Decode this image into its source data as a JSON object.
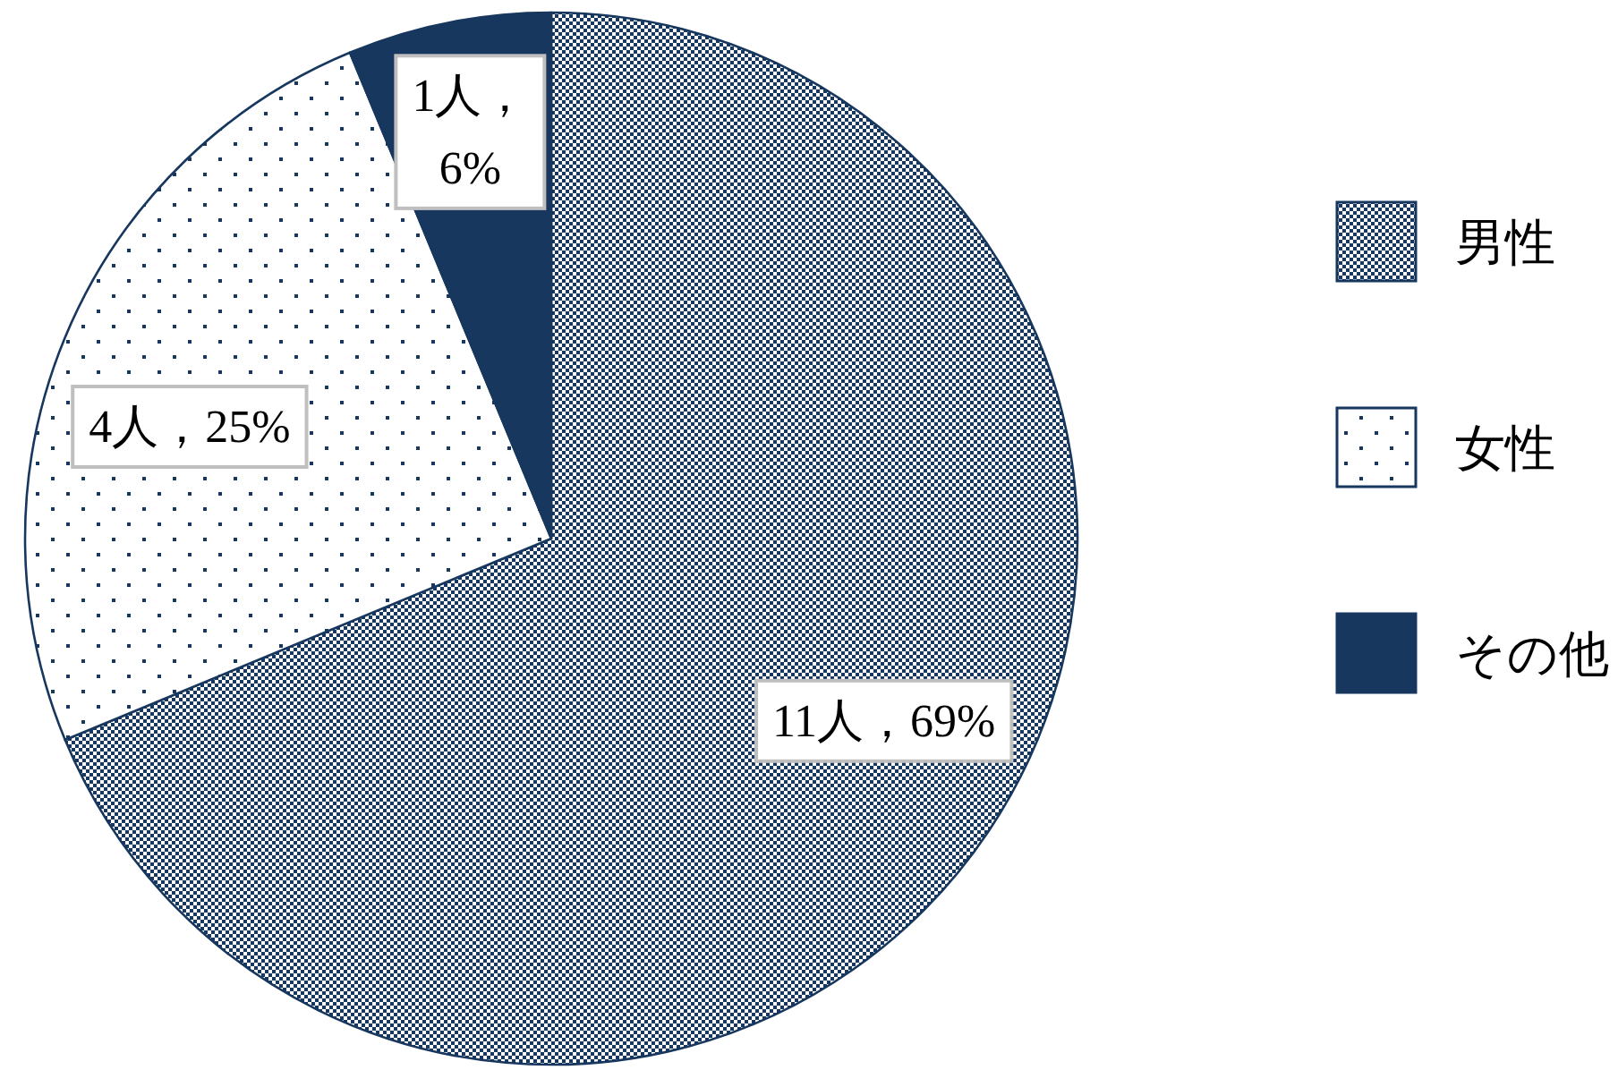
{
  "chart_data": {
    "type": "pie",
    "categories": [
      "男性",
      "女性",
      "その他"
    ],
    "values": [
      11,
      4,
      1
    ],
    "colors": [
      "#17375e",
      "#17375e",
      "#17375e"
    ],
    "value_labels": [
      "11人，69%",
      "4人，25%",
      "1人，6%"
    ],
    "legend": "right"
  }
}
